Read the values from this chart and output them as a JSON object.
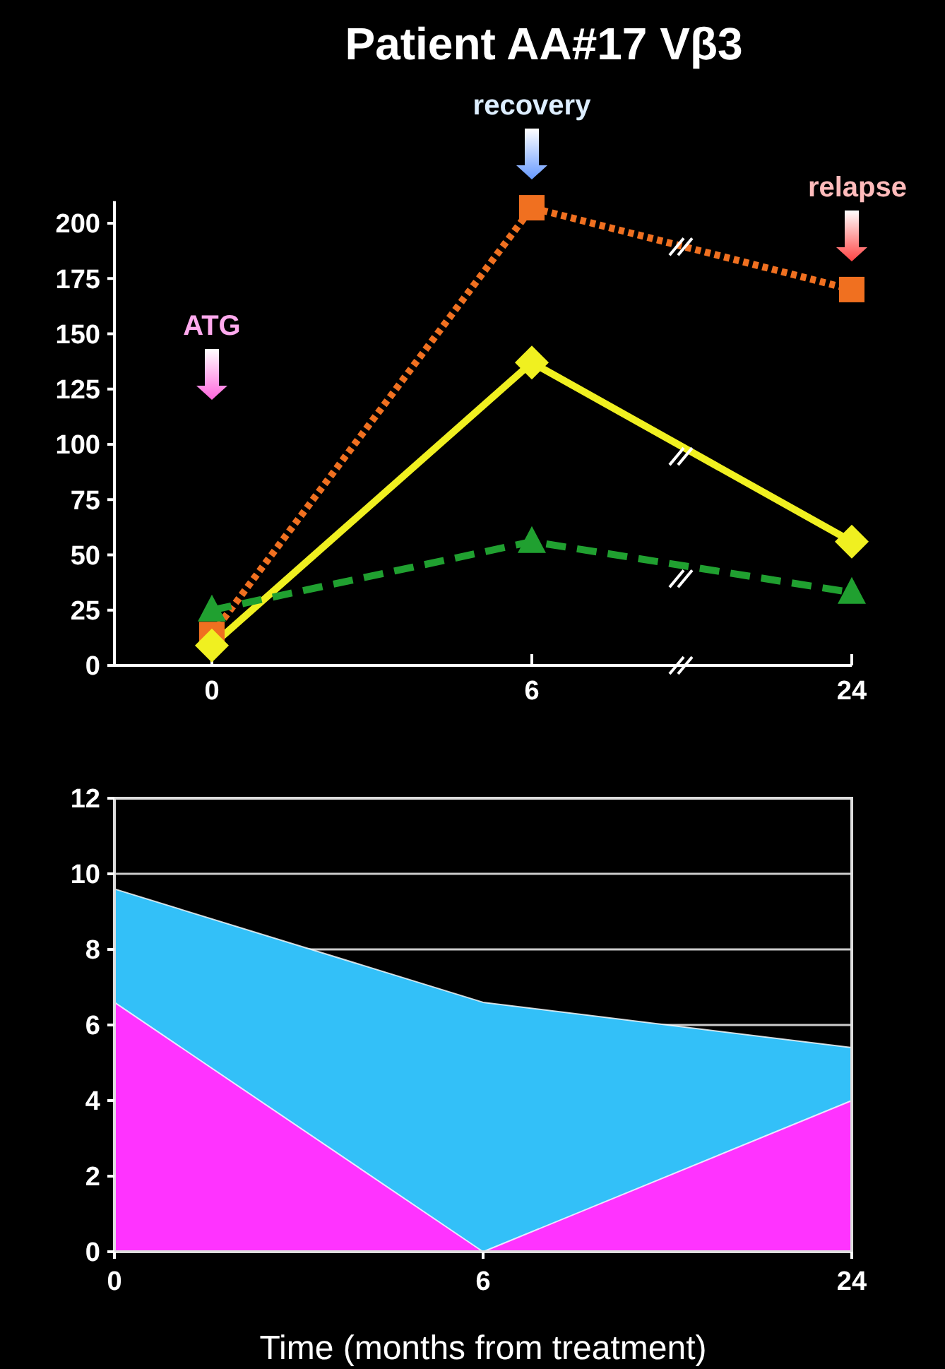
{
  "chart_data": [
    {
      "type": "line",
      "title": "Patient AA#17 Vβ3",
      "categories": [
        "0",
        "6",
        "24"
      ],
      "ylim": [
        0,
        210
      ],
      "yticks": [
        0,
        25,
        50,
        75,
        100,
        125,
        150,
        175,
        200
      ],
      "grid": false,
      "annotations": [
        "ATG",
        "recovery",
        "relapse"
      ],
      "series": [
        {
          "color": "#f07020",
          "values": [
            14,
            207,
            170
          ],
          "marker": "square",
          "line_style": "dotted"
        },
        {
          "color": "#f0f020",
          "values": [
            9,
            137,
            56
          ],
          "marker": "diamond",
          "line_style": "solid"
        },
        {
          "color": "#20a030",
          "values": [
            25,
            56,
            33
          ],
          "marker": "triangle",
          "line_style": "dashed"
        }
      ]
    },
    {
      "type": "area",
      "xlabel": "Time (months from treatment)",
      "categories": [
        "0",
        "6",
        "24"
      ],
      "ylim": [
        0,
        12
      ],
      "yticks": [
        0,
        2,
        4,
        6,
        8,
        10,
        12
      ],
      "grid": "y",
      "series": [
        {
          "color": "#33c0f8",
          "values": [
            9.6,
            6.6,
            5.4
          ]
        },
        {
          "color": "#ff33ff",
          "values": [
            6.6,
            0,
            4.0
          ]
        }
      ]
    }
  ]
}
